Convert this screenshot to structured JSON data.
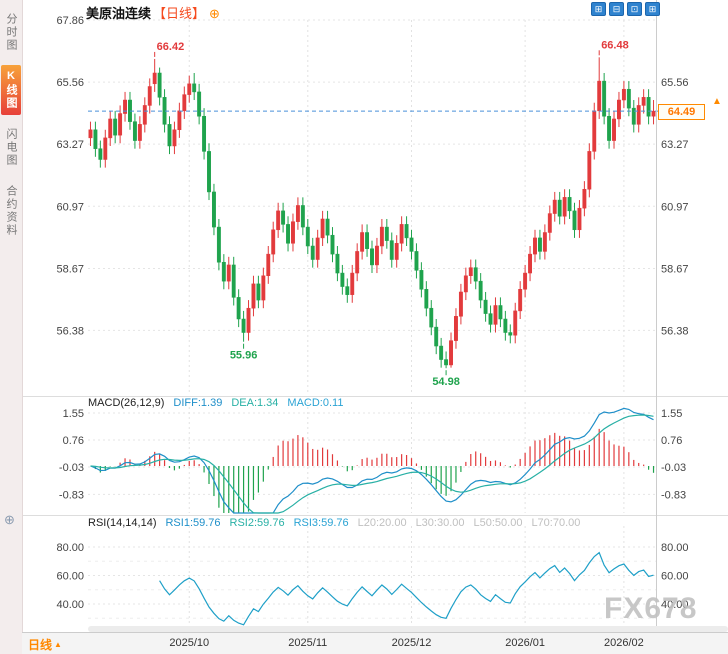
{
  "header": {
    "title": "美原油连续",
    "period_tag": "【日线】",
    "add_icon": "⊕"
  },
  "sidebar": {
    "items": [
      {
        "label": "分时图",
        "active": false
      },
      {
        "label": "K线图",
        "active": true
      },
      {
        "label": "闪电图",
        "active": false
      },
      {
        "label": "合约资料",
        "active": false
      }
    ]
  },
  "toolbar": {
    "buttons": [
      {
        "name": "layout-single",
        "glyph": "⊞"
      },
      {
        "name": "layout-grid",
        "glyph": "⊟"
      },
      {
        "name": "layout-left",
        "glyph": "⊡"
      },
      {
        "name": "layout-quad",
        "glyph": "⊞"
      }
    ]
  },
  "icons": {
    "expand_panel": "⊕"
  },
  "price_marker": {
    "value": "64.49",
    "arrow": "▲"
  },
  "bottom_bar": {
    "period_label": "日线",
    "period_arrow": "▲"
  },
  "watermark": "FX678",
  "panels": {
    "macd": {
      "title": "MACD(26,12,9)",
      "values": [
        {
          "label": "DIFF:1.39",
          "color": "#1f8fc9"
        },
        {
          "label": "DEA:1.34",
          "color": "#28b0a5"
        },
        {
          "label": "MACD:0.11",
          "color": "#2ba3d4"
        }
      ],
      "axis": [
        1.55,
        0.76,
        -0.03,
        -0.83
      ]
    },
    "rsi": {
      "title": "RSI(14,14,14)",
      "values": [
        {
          "label": "RSI1:59.76",
          "color": "#1f8fc9"
        },
        {
          "label": "RSI2:59.76",
          "color": "#28b0a5"
        },
        {
          "label": "RSI3:59.76",
          "color": "#2ba3d4"
        },
        {
          "label": "L20:20.00",
          "color": "#c0c0c0"
        },
        {
          "label": "L30:30.00",
          "color": "#c0c0c0"
        },
        {
          "label": "L50:50.00",
          "color": "#c0c0c0"
        },
        {
          "label": "L70:70.00",
          "color": "#c0c0c0"
        }
      ],
      "axis": [
        80,
        60,
        40
      ],
      "levels": [
        70,
        50,
        30
      ]
    }
  },
  "colors": {
    "up": "#e23a3c",
    "down": "#1fa34d",
    "diff_line": "#1f8fc9",
    "dea_line": "#28b0a5",
    "rsi_line": "#1fa0c8",
    "price_line": "#4a90d9",
    "accent": "#ff8a00",
    "grid": "#e5e5e5"
  },
  "chart_data": {
    "type": "candlestick",
    "title": "美原油连续 日线 (US Crude Oil Continuous, Daily)",
    "price_axis": {
      "max": 67.86,
      "min": 54.1,
      "gridlines": [
        67.86,
        65.56,
        63.27,
        60.97,
        58.67,
        56.38
      ]
    },
    "current_price": 64.49,
    "x_ticks": [
      {
        "index": 20,
        "label": "2025/10"
      },
      {
        "index": 44,
        "label": "2025/11"
      },
      {
        "index": 65,
        "label": "2025/12"
      },
      {
        "index": 88,
        "label": "2026/01"
      },
      {
        "index": 108,
        "label": "2026/02"
      }
    ],
    "annotations": [
      {
        "index": 13,
        "label": "66.42",
        "kind": "high"
      },
      {
        "index": 31,
        "label": "55.96",
        "kind": "low"
      },
      {
        "index": 72,
        "label": "54.98",
        "kind": "low"
      },
      {
        "index": 103,
        "label": "66.48",
        "kind": "high"
      }
    ],
    "candles": [
      [
        63.5,
        64.1,
        63.2,
        63.8
      ],
      [
        63.8,
        64.1,
        62.8,
        63.1
      ],
      [
        63.1,
        63.4,
        62.4,
        62.7
      ],
      [
        62.7,
        63.8,
        62.4,
        63.5
      ],
      [
        63.5,
        64.5,
        63.2,
        64.2
      ],
      [
        64.2,
        64.5,
        63.3,
        63.6
      ],
      [
        63.6,
        64.7,
        63.3,
        64.4
      ],
      [
        64.4,
        65.2,
        64.1,
        64.9
      ],
      [
        64.9,
        65.2,
        63.8,
        64.1
      ],
      [
        64.1,
        64.4,
        63.1,
        63.4
      ],
      [
        63.4,
        64.3,
        63.1,
        64.0
      ],
      [
        64.0,
        65.0,
        63.7,
        64.7
      ],
      [
        64.7,
        65.7,
        64.4,
        65.4
      ],
      [
        65.5,
        66.42,
        65.2,
        65.9
      ],
      [
        65.9,
        66.1,
        64.7,
        65.0
      ],
      [
        65.0,
        65.3,
        63.7,
        64.0
      ],
      [
        64.0,
        64.3,
        62.9,
        63.2
      ],
      [
        63.2,
        64.1,
        62.9,
        63.8
      ],
      [
        63.8,
        64.8,
        63.5,
        64.5
      ],
      [
        64.5,
        65.4,
        64.2,
        65.1
      ],
      [
        65.1,
        65.8,
        64.8,
        65.5
      ],
      [
        65.5,
        65.9,
        64.9,
        65.2
      ],
      [
        65.2,
        65.5,
        64.0,
        64.3
      ],
      [
        64.3,
        64.6,
        62.7,
        63.0
      ],
      [
        63.0,
        63.3,
        61.2,
        61.5
      ],
      [
        61.5,
        61.8,
        59.9,
        60.2
      ],
      [
        60.2,
        60.5,
        58.6,
        58.9
      ],
      [
        58.9,
        59.2,
        57.9,
        58.2
      ],
      [
        58.2,
        59.1,
        57.9,
        58.8
      ],
      [
        58.8,
        59.1,
        57.3,
        57.6
      ],
      [
        57.6,
        57.9,
        56.5,
        56.8
      ],
      [
        56.8,
        57.1,
        55.96,
        56.3
      ],
      [
        56.3,
        57.5,
        56.0,
        57.2
      ],
      [
        57.2,
        58.4,
        56.9,
        58.1
      ],
      [
        58.1,
        58.4,
        57.2,
        57.5
      ],
      [
        57.5,
        58.7,
        57.2,
        58.4
      ],
      [
        58.4,
        59.5,
        58.1,
        59.2
      ],
      [
        59.2,
        60.4,
        58.9,
        60.1
      ],
      [
        60.1,
        61.1,
        59.8,
        60.8
      ],
      [
        60.8,
        61.1,
        60.0,
        60.3
      ],
      [
        60.3,
        60.6,
        59.3,
        59.6
      ],
      [
        59.6,
        60.7,
        59.3,
        60.4
      ],
      [
        60.4,
        61.3,
        60.1,
        61.0
      ],
      [
        61.0,
        61.3,
        59.9,
        60.2
      ],
      [
        60.2,
        60.5,
        59.2,
        59.5
      ],
      [
        59.5,
        59.8,
        58.7,
        59.0
      ],
      [
        59.0,
        60.1,
        58.7,
        59.8
      ],
      [
        59.8,
        60.8,
        59.5,
        60.5
      ],
      [
        60.5,
        60.8,
        59.6,
        59.9
      ],
      [
        59.9,
        60.2,
        58.9,
        59.2
      ],
      [
        59.2,
        59.5,
        58.2,
        58.5
      ],
      [
        58.5,
        58.8,
        57.7,
        58.0
      ],
      [
        58.0,
        58.3,
        57.4,
        57.7
      ],
      [
        57.7,
        58.8,
        57.4,
        58.5
      ],
      [
        58.5,
        59.6,
        58.2,
        59.3
      ],
      [
        59.3,
        60.3,
        59.0,
        60.0
      ],
      [
        60.0,
        60.3,
        59.1,
        59.4
      ],
      [
        59.4,
        59.7,
        58.5,
        58.8
      ],
      [
        58.8,
        59.8,
        58.5,
        59.5
      ],
      [
        59.5,
        60.5,
        59.2,
        60.2
      ],
      [
        60.2,
        60.5,
        59.4,
        59.7
      ],
      [
        59.7,
        60.0,
        58.7,
        59.0
      ],
      [
        59.0,
        59.9,
        58.7,
        59.6
      ],
      [
        59.6,
        60.6,
        59.3,
        60.3
      ],
      [
        60.3,
        60.6,
        59.5,
        59.8
      ],
      [
        59.8,
        60.1,
        59.0,
        59.3
      ],
      [
        59.3,
        59.6,
        58.3,
        58.6
      ],
      [
        58.6,
        58.9,
        57.6,
        57.9
      ],
      [
        57.9,
        58.2,
        56.9,
        57.2
      ],
      [
        57.2,
        57.5,
        56.2,
        56.5
      ],
      [
        56.5,
        56.8,
        55.5,
        55.8
      ],
      [
        55.8,
        56.1,
        55.0,
        55.3
      ],
      [
        55.3,
        55.6,
        54.98,
        55.1
      ],
      [
        55.1,
        56.3,
        55.0,
        56.0
      ],
      [
        56.0,
        57.2,
        55.7,
        56.9
      ],
      [
        56.9,
        58.1,
        56.6,
        57.8
      ],
      [
        57.8,
        58.7,
        57.5,
        58.4
      ],
      [
        58.4,
        59.0,
        58.1,
        58.7
      ],
      [
        58.7,
        59.0,
        57.9,
        58.2
      ],
      [
        58.2,
        58.5,
        57.2,
        57.5
      ],
      [
        57.5,
        57.8,
        56.7,
        57.0
      ],
      [
        57.0,
        57.3,
        56.3,
        56.6
      ],
      [
        56.6,
        57.6,
        56.3,
        57.3
      ],
      [
        57.3,
        57.6,
        56.5,
        56.8
      ],
      [
        56.8,
        57.1,
        56.0,
        56.3
      ],
      [
        56.3,
        56.6,
        55.9,
        56.2
      ],
      [
        56.2,
        57.4,
        55.9,
        57.1
      ],
      [
        57.1,
        58.2,
        56.8,
        57.9
      ],
      [
        57.9,
        58.8,
        57.6,
        58.5
      ],
      [
        58.5,
        59.5,
        58.2,
        59.2
      ],
      [
        59.2,
        60.1,
        58.9,
        59.8
      ],
      [
        59.8,
        60.1,
        59.0,
        59.3
      ],
      [
        59.3,
        60.3,
        59.0,
        60.0
      ],
      [
        60.0,
        61.0,
        59.7,
        60.7
      ],
      [
        60.7,
        61.5,
        60.4,
        61.2
      ],
      [
        61.2,
        61.5,
        60.3,
        60.6
      ],
      [
        60.6,
        61.6,
        60.3,
        61.3
      ],
      [
        61.3,
        61.6,
        60.5,
        60.8
      ],
      [
        60.8,
        61.1,
        59.8,
        60.1
      ],
      [
        60.1,
        61.2,
        59.8,
        60.9
      ],
      [
        60.9,
        61.9,
        60.6,
        61.6
      ],
      [
        61.6,
        63.3,
        61.3,
        63.0
      ],
      [
        63.0,
        64.8,
        62.7,
        64.5
      ],
      [
        64.5,
        66.48,
        64.2,
        65.6
      ],
      [
        65.6,
        65.9,
        64.0,
        64.3
      ],
      [
        64.3,
        64.6,
        63.1,
        63.4
      ],
      [
        63.4,
        64.5,
        63.1,
        64.2
      ],
      [
        64.2,
        65.2,
        63.9,
        64.9
      ],
      [
        64.9,
        65.6,
        64.6,
        65.3
      ],
      [
        65.3,
        65.6,
        64.3,
        64.6
      ],
      [
        64.6,
        64.9,
        63.7,
        64.0
      ],
      [
        64.0,
        65.0,
        63.7,
        64.7
      ],
      [
        64.7,
        65.3,
        64.4,
        65.0
      ],
      [
        65.0,
        65.3,
        64.0,
        64.3
      ],
      [
        64.3,
        64.9,
        64.0,
        64.49
      ]
    ]
  }
}
